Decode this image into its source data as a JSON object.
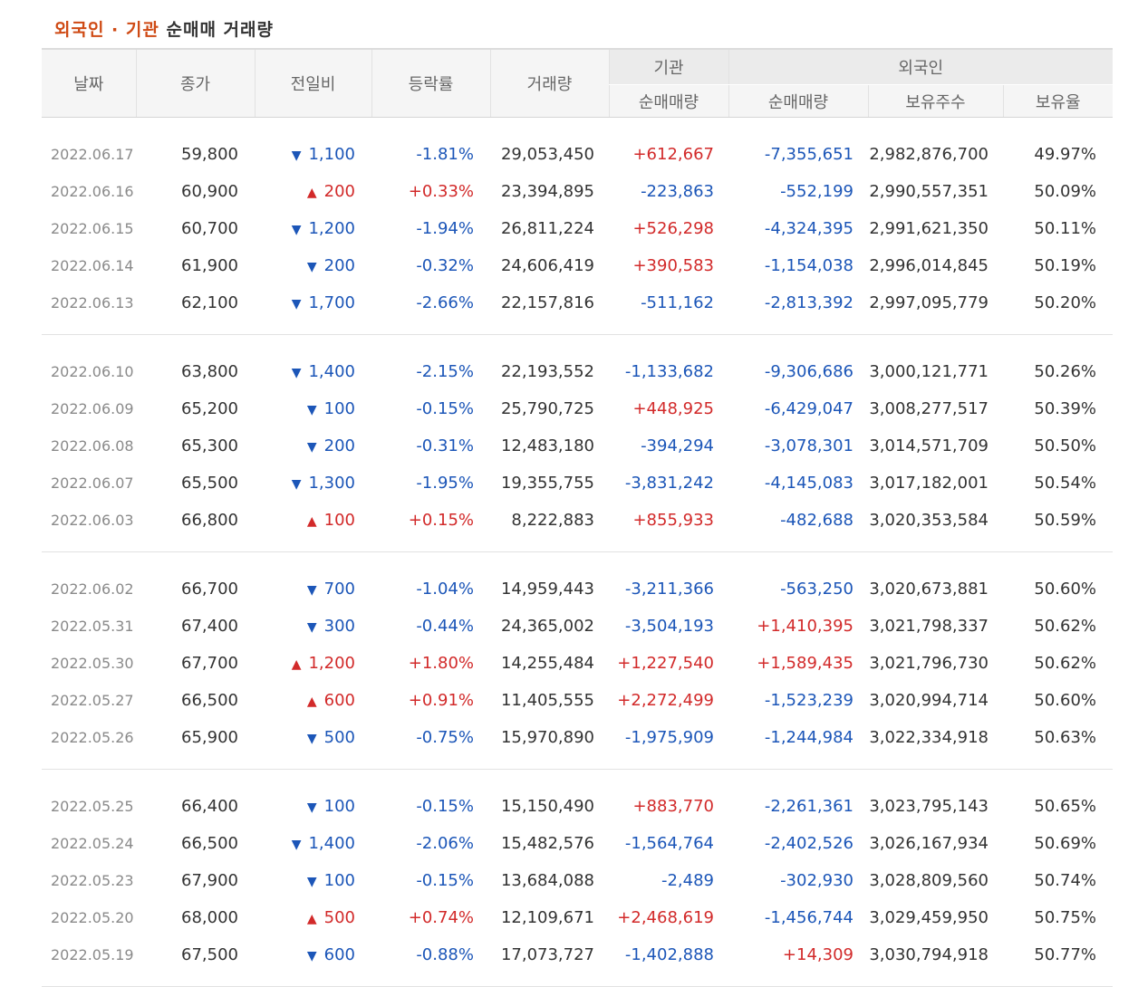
{
  "title": {
    "highlight": "외국인 · 기관",
    "rest": "순매매 거래량"
  },
  "colors": {
    "up": "#d22a2a",
    "down": "#1c56b8",
    "title_accent": "#cf4a14"
  },
  "header": {
    "date": "날짜",
    "close": "종가",
    "change": "전일비",
    "rate": "등락률",
    "volume": "거래량",
    "institution": "기관",
    "foreign": "외국인",
    "inst_net": "순매매량",
    "frg_net": "순매매량",
    "frg_hold": "보유주수",
    "frg_ratio": "보유율"
  },
  "groups": [
    {
      "rows": [
        {
          "date": "2022.06.17",
          "close": "59,800",
          "dir": "down",
          "change": "1,100",
          "rate": "-1.81%",
          "volume": "29,053,450",
          "inst": "+612,667",
          "frg": "-7,355,651",
          "hold": "2,982,876,700",
          "ratio": "49.97%"
        },
        {
          "date": "2022.06.16",
          "close": "60,900",
          "dir": "up",
          "change": "200",
          "rate": "+0.33%",
          "volume": "23,394,895",
          "inst": "-223,863",
          "frg": "-552,199",
          "hold": "2,990,557,351",
          "ratio": "50.09%"
        },
        {
          "date": "2022.06.15",
          "close": "60,700",
          "dir": "down",
          "change": "1,200",
          "rate": "-1.94%",
          "volume": "26,811,224",
          "inst": "+526,298",
          "frg": "-4,324,395",
          "hold": "2,991,621,350",
          "ratio": "50.11%"
        },
        {
          "date": "2022.06.14",
          "close": "61,900",
          "dir": "down",
          "change": "200",
          "rate": "-0.32%",
          "volume": "24,606,419",
          "inst": "+390,583",
          "frg": "-1,154,038",
          "hold": "2,996,014,845",
          "ratio": "50.19%"
        },
        {
          "date": "2022.06.13",
          "close": "62,100",
          "dir": "down",
          "change": "1,700",
          "rate": "-2.66%",
          "volume": "22,157,816",
          "inst": "-511,162",
          "frg": "-2,813,392",
          "hold": "2,997,095,779",
          "ratio": "50.20%"
        }
      ]
    },
    {
      "rows": [
        {
          "date": "2022.06.10",
          "close": "63,800",
          "dir": "down",
          "change": "1,400",
          "rate": "-2.15%",
          "volume": "22,193,552",
          "inst": "-1,133,682",
          "frg": "-9,306,686",
          "hold": "3,000,121,771",
          "ratio": "50.26%"
        },
        {
          "date": "2022.06.09",
          "close": "65,200",
          "dir": "down",
          "change": "100",
          "rate": "-0.15%",
          "volume": "25,790,725",
          "inst": "+448,925",
          "frg": "-6,429,047",
          "hold": "3,008,277,517",
          "ratio": "50.39%"
        },
        {
          "date": "2022.06.08",
          "close": "65,300",
          "dir": "down",
          "change": "200",
          "rate": "-0.31%",
          "volume": "12,483,180",
          "inst": "-394,294",
          "frg": "-3,078,301",
          "hold": "3,014,571,709",
          "ratio": "50.50%"
        },
        {
          "date": "2022.06.07",
          "close": "65,500",
          "dir": "down",
          "change": "1,300",
          "rate": "-1.95%",
          "volume": "19,355,755",
          "inst": "-3,831,242",
          "frg": "-4,145,083",
          "hold": "3,017,182,001",
          "ratio": "50.54%"
        },
        {
          "date": "2022.06.03",
          "close": "66,800",
          "dir": "up",
          "change": "100",
          "rate": "+0.15%",
          "volume": "8,222,883",
          "inst": "+855,933",
          "frg": "-482,688",
          "hold": "3,020,353,584",
          "ratio": "50.59%"
        }
      ]
    },
    {
      "rows": [
        {
          "date": "2022.06.02",
          "close": "66,700",
          "dir": "down",
          "change": "700",
          "rate": "-1.04%",
          "volume": "14,959,443",
          "inst": "-3,211,366",
          "frg": "-563,250",
          "hold": "3,020,673,881",
          "ratio": "50.60%"
        },
        {
          "date": "2022.05.31",
          "close": "67,400",
          "dir": "down",
          "change": "300",
          "rate": "-0.44%",
          "volume": "24,365,002",
          "inst": "-3,504,193",
          "frg": "+1,410,395",
          "hold": "3,021,798,337",
          "ratio": "50.62%"
        },
        {
          "date": "2022.05.30",
          "close": "67,700",
          "dir": "up",
          "change": "1,200",
          "rate": "+1.80%",
          "volume": "14,255,484",
          "inst": "+1,227,540",
          "frg": "+1,589,435",
          "hold": "3,021,796,730",
          "ratio": "50.62%"
        },
        {
          "date": "2022.05.27",
          "close": "66,500",
          "dir": "up",
          "change": "600",
          "rate": "+0.91%",
          "volume": "11,405,555",
          "inst": "+2,272,499",
          "frg": "-1,523,239",
          "hold": "3,020,994,714",
          "ratio": "50.60%"
        },
        {
          "date": "2022.05.26",
          "close": "65,900",
          "dir": "down",
          "change": "500",
          "rate": "-0.75%",
          "volume": "15,970,890",
          "inst": "-1,975,909",
          "frg": "-1,244,984",
          "hold": "3,022,334,918",
          "ratio": "50.63%"
        }
      ]
    },
    {
      "rows": [
        {
          "date": "2022.05.25",
          "close": "66,400",
          "dir": "down",
          "change": "100",
          "rate": "-0.15%",
          "volume": "15,150,490",
          "inst": "+883,770",
          "frg": "-2,261,361",
          "hold": "3,023,795,143",
          "ratio": "50.65%"
        },
        {
          "date": "2022.05.24",
          "close": "66,500",
          "dir": "down",
          "change": "1,400",
          "rate": "-2.06%",
          "volume": "15,482,576",
          "inst": "-1,564,764",
          "frg": "-2,402,526",
          "hold": "3,026,167,934",
          "ratio": "50.69%"
        },
        {
          "date": "2022.05.23",
          "close": "67,900",
          "dir": "down",
          "change": "100",
          "rate": "-0.15%",
          "volume": "13,684,088",
          "inst": "-2,489",
          "frg": "-302,930",
          "hold": "3,028,809,560",
          "ratio": "50.74%"
        },
        {
          "date": "2022.05.20",
          "close": "68,000",
          "dir": "up",
          "change": "500",
          "rate": "+0.74%",
          "volume": "12,109,671",
          "inst": "+2,468,619",
          "frg": "-1,456,744",
          "hold": "3,029,459,950",
          "ratio": "50.75%"
        },
        {
          "date": "2022.05.19",
          "close": "67,500",
          "dir": "down",
          "change": "600",
          "rate": "-0.88%",
          "volume": "17,073,727",
          "inst": "-1,402,888",
          "frg": "+14,309",
          "hold": "3,030,794,918",
          "ratio": "50.77%"
        }
      ]
    }
  ]
}
